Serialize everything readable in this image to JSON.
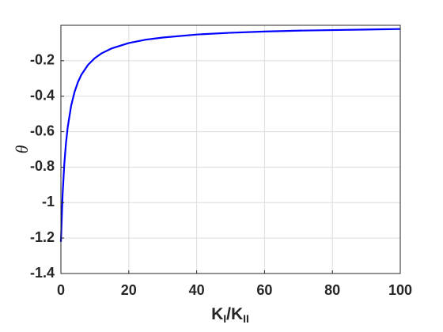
{
  "chart_data": {
    "type": "line",
    "ylabel": "θ",
    "xlabel": [
      "K",
      "I",
      "/K",
      "II"
    ],
    "x": [
      0,
      0.5,
      1,
      1.5,
      2,
      3,
      4,
      5,
      6,
      8,
      10,
      12,
      15,
      20,
      25,
      30,
      40,
      50,
      60,
      70,
      80,
      90,
      100
    ],
    "series": [
      {
        "color": "#0000ff",
        "values": [
          -1.221,
          -0.954,
          -0.782,
          -0.663,
          -0.576,
          -0.455,
          -0.377,
          -0.321,
          -0.28,
          -0.223,
          -0.185,
          -0.158,
          -0.13,
          -0.1,
          -0.081,
          -0.069,
          -0.052,
          -0.042,
          -0.035,
          -0.03,
          -0.027,
          -0.024,
          -0.021
        ]
      }
    ],
    "xlim": [
      0,
      100
    ],
    "xticks": [
      0,
      20,
      40,
      60,
      80,
      100
    ],
    "ylim": [
      -1.4,
      0
    ],
    "yticks": [
      -1.4,
      -1.2,
      -1,
      -0.8,
      -0.6,
      -0.4,
      -0.2
    ],
    "grid": true
  }
}
